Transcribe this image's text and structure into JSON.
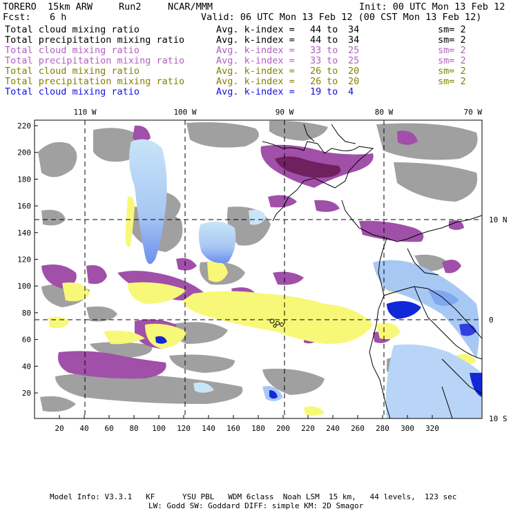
{
  "header": {
    "model": "TORERO  15km ARW",
    "run": "Run2",
    "org": "NCAR/MMM",
    "init": "Init: 00 UTC Mon 13 Feb 12",
    "fcst_label": "Fcst:",
    "fcst_value": "6 h",
    "valid": "Valid: 06 UTC Mon 13 Feb 12 (00 CST Mon 13 Feb 12)"
  },
  "legend": [
    {
      "field": "Total cloud mixing ratio",
      "kindex": "Avg. k-index =",
      "from": "44",
      "to_word": "to",
      "to": "34",
      "sm": "sm= 2",
      "color": "#000000"
    },
    {
      "field": "Total precipitation mixing ratio",
      "kindex": "Avg. k-index =",
      "from": "44",
      "to_word": "to",
      "to": "34",
      "sm": "sm= 2",
      "color": "#000000"
    },
    {
      "field": "Total cloud mixing ratio",
      "kindex": "Avg. k-index =",
      "from": "33",
      "to_word": "to",
      "to": "25",
      "sm": "sm= 2",
      "color": "#b060c0"
    },
    {
      "field": "Total precipitation mixing ratio",
      "kindex": "Avg. k-index =",
      "from": "33",
      "to_word": "to",
      "to": "25",
      "sm": "sm= 2",
      "color": "#b060c0"
    },
    {
      "field": "Total cloud mixing ratio",
      "kindex": "Avg. k-index =",
      "from": "26",
      "to_word": "to",
      "to": "20",
      "sm": "sm= 2",
      "color": "#808000"
    },
    {
      "field": "Total precipitation mixing ratio",
      "kindex": "Avg. k-index =",
      "from": "26",
      "to_word": "to",
      "to": "20",
      "sm": "sm= 2",
      "color": "#808000"
    },
    {
      "field": "Total cloud mixing ratio",
      "kindex": "Avg. k-index =",
      "from": "19",
      "to_word": "to",
      "to": "4",
      "sm": "",
      "color": "#1010e0"
    }
  ],
  "map": {
    "lon_labels": [
      "110 W",
      "100 W",
      "90 W",
      "80 W",
      "70 W"
    ],
    "lat_labels": [
      "10 N",
      "0",
      "10 S"
    ],
    "x_ticks": [
      "20",
      "40",
      "60",
      "80",
      "100",
      "120",
      "140",
      "160",
      "180",
      "200",
      "220",
      "240",
      "260",
      "280",
      "300",
      "320"
    ],
    "y_ticks": [
      "220",
      "200",
      "180",
      "160",
      "140",
      "120",
      "100",
      "80",
      "60",
      "40",
      "20"
    ],
    "colors": {
      "gray": "#a0a0a0",
      "purple": "#a050a8",
      "dark_purple": "#70205e",
      "yellow": "#f8f878",
      "light_blue": "#c8e4f8",
      "blue": "#80a8f0",
      "deep_blue": "#1028d8",
      "coast": "#000000"
    }
  },
  "footer": {
    "line1": "Model Info: V3.3.1   KF      YSU PBL   WDM 6class  Noah LSM  15 km,   44 levels,  123 sec",
    "line2": "LW: Godd SW: Goddard DIFF: simple KM: 2D Smagor"
  }
}
